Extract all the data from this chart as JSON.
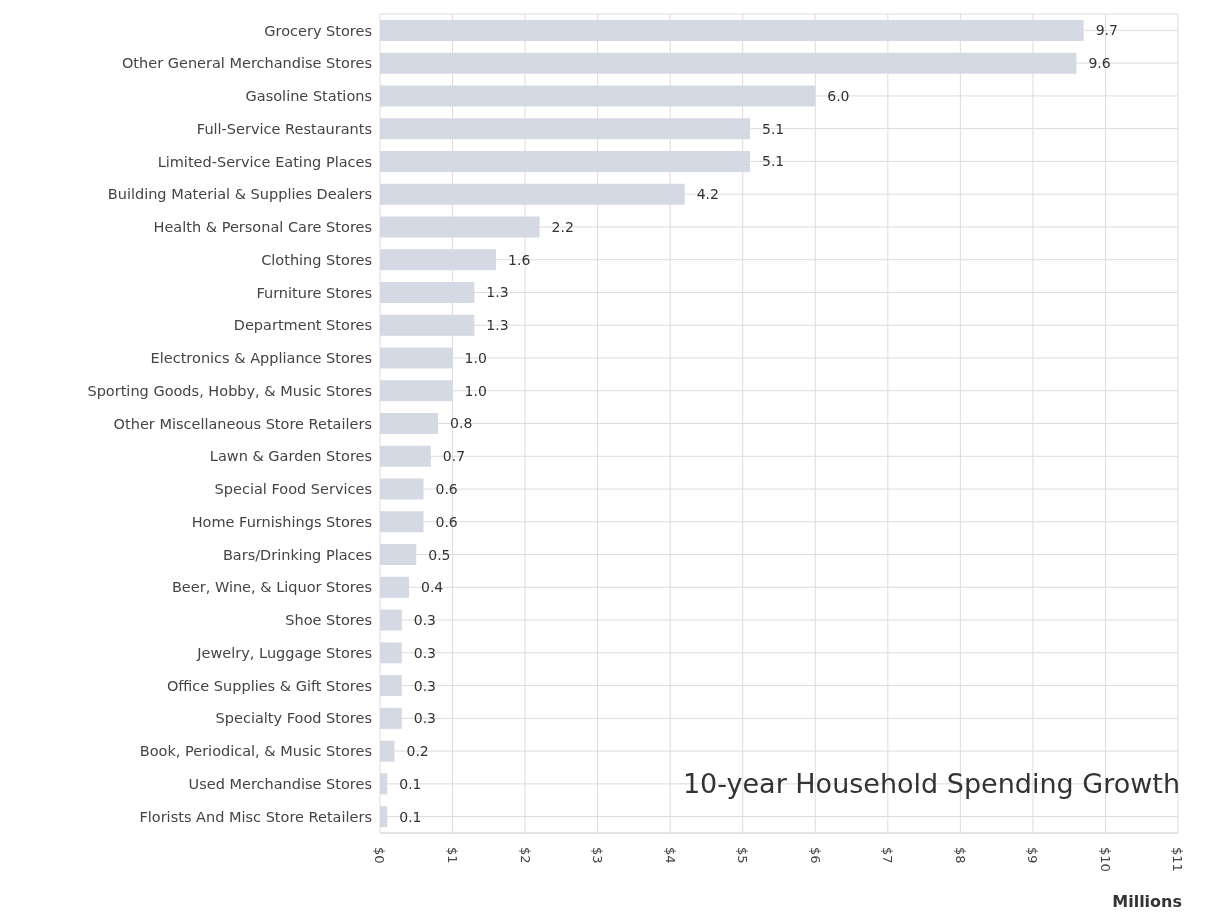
{
  "chart_data": {
    "type": "bar",
    "orientation": "horizontal",
    "title": "10-year Household Spending Growth",
    "xlabel": "Millions",
    "categories": [
      "Grocery Stores",
      "Other General Merchandise Stores",
      "Gasoline Stations",
      "Full-Service Restaurants",
      "Limited-Service Eating Places",
      "Building Material & Supplies Dealers",
      "Health & Personal Care Stores",
      "Clothing Stores",
      "Furniture Stores",
      "Department Stores",
      "Electronics & Appliance Stores",
      "Sporting Goods, Hobby, & Music Stores",
      "Other Miscellaneous Store Retailers",
      "Lawn & Garden Stores",
      "Special Food Services",
      "Home Furnishings Stores",
      "Bars/Drinking Places",
      "Beer, Wine, & Liquor Stores",
      "Shoe Stores",
      "Jewelry, Luggage Stores",
      "Office Supplies & Gift Stores",
      "Specialty Food Stores",
      "Book, Periodical, & Music Stores",
      "Used Merchandise Stores",
      "Florists And Misc Store Retailers"
    ],
    "values": [
      9.7,
      9.6,
      6.0,
      5.1,
      5.1,
      4.2,
      2.2,
      1.6,
      1.3,
      1.3,
      1.0,
      1.0,
      0.8,
      0.7,
      0.6,
      0.6,
      0.5,
      0.4,
      0.3,
      0.3,
      0.3,
      0.3,
      0.2,
      0.1,
      0.1
    ],
    "value_labels": [
      "9.7",
      "9.6",
      "6.0",
      "5.1",
      "5.1",
      "4.2",
      "2.2",
      "1.6",
      "1.3",
      "1.3",
      "1.0",
      "1.0",
      "0.8",
      "0.7",
      "0.6",
      "0.6",
      "0.5",
      "0.4",
      "0.3",
      "0.3",
      "0.3",
      "0.3",
      "0.2",
      "0.1",
      "0.1"
    ],
    "color": "#d5d9e4",
    "xlim": [
      0,
      11
    ],
    "xticks": [
      {
        "value": 0,
        "label": "$0"
      },
      {
        "value": 1,
        "label": "$1"
      },
      {
        "value": 2,
        "label": "$2"
      },
      {
        "value": 3,
        "label": "$3"
      },
      {
        "value": 4,
        "label": "$4"
      },
      {
        "value": 5,
        "label": "$5"
      },
      {
        "value": 6,
        "label": "$6"
      },
      {
        "value": 7,
        "label": "$7"
      },
      {
        "value": 8,
        "label": "$8"
      },
      {
        "value": 9,
        "label": "$9"
      },
      {
        "value": 10,
        "label": "$10"
      },
      {
        "value": 11,
        "label": "$11"
      }
    ],
    "grid": true
  }
}
